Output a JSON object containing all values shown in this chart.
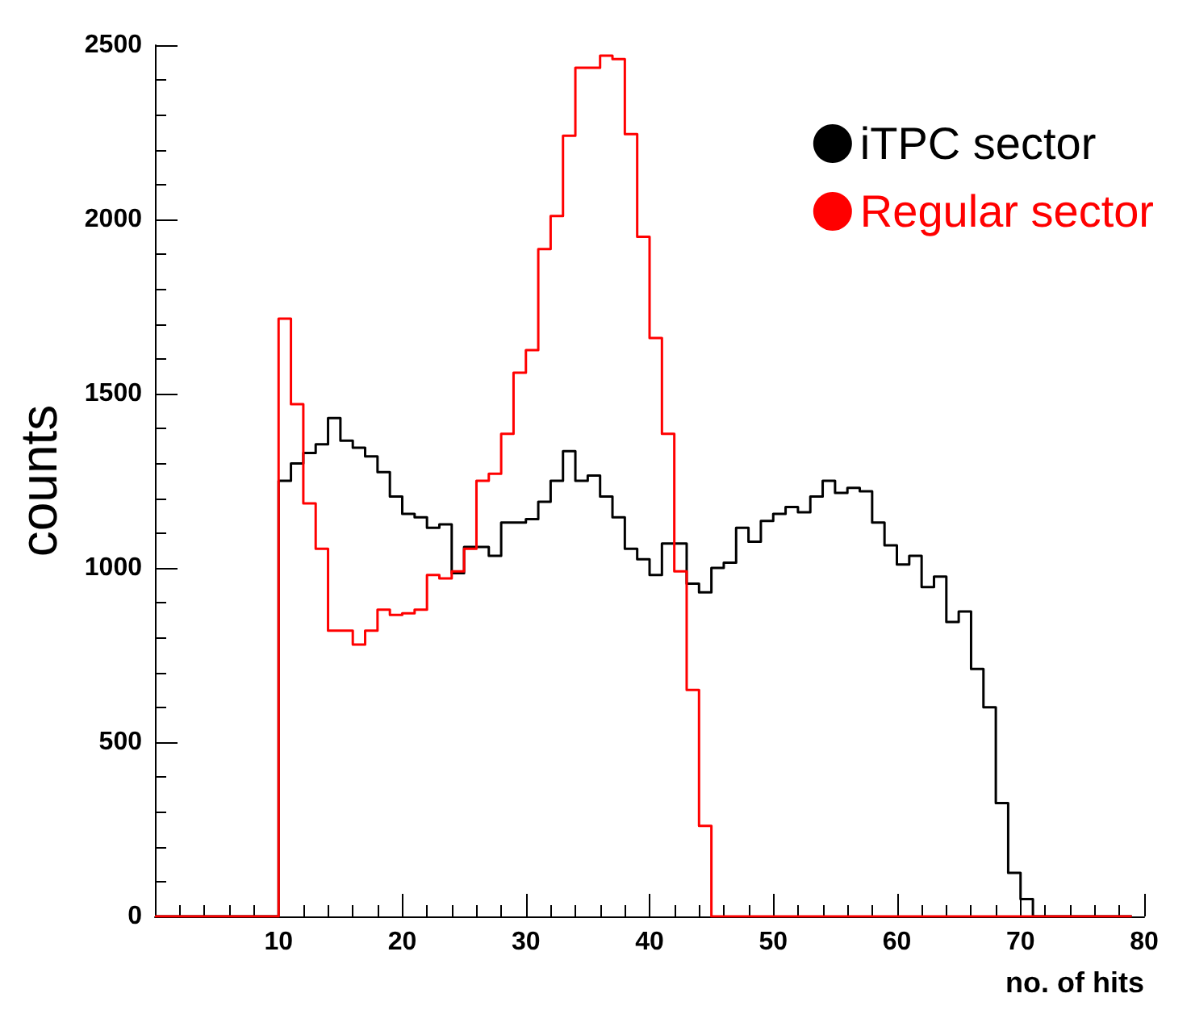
{
  "chart_data": {
    "type": "step",
    "xlabel": "no. of hits",
    "ylabel": "counts",
    "x": [
      0,
      1,
      2,
      3,
      4,
      5,
      6,
      7,
      8,
      9,
      10,
      11,
      12,
      13,
      14,
      15,
      16,
      17,
      18,
      19,
      20,
      21,
      22,
      23,
      24,
      25,
      26,
      27,
      28,
      29,
      30,
      31,
      32,
      33,
      34,
      35,
      36,
      37,
      38,
      39,
      40,
      41,
      42,
      43,
      44,
      45,
      46,
      47,
      48,
      49,
      50,
      51,
      52,
      53,
      54,
      55,
      56,
      57,
      58,
      59,
      60,
      61,
      62,
      63,
      64,
      65,
      66,
      67,
      68,
      69,
      70,
      71,
      72,
      73,
      74,
      75,
      76,
      77,
      78,
      79
    ],
    "series": [
      {
        "name": "iTPC sector",
        "color": "#000000",
        "values": [
          0,
          0,
          0,
          0,
          0,
          0,
          0,
          0,
          0,
          0,
          1250,
          1300,
          1330,
          1355,
          1430,
          1365,
          1345,
          1320,
          1275,
          1205,
          1155,
          1145,
          1115,
          1125,
          985,
          1060,
          1060,
          1035,
          1130,
          1130,
          1140,
          1190,
          1250,
          1335,
          1250,
          1265,
          1205,
          1145,
          1055,
          1025,
          980,
          1070,
          1070,
          955,
          930,
          1000,
          1015,
          1115,
          1075,
          1135,
          1155,
          1175,
          1160,
          1205,
          1250,
          1215,
          1230,
          1220,
          1130,
          1065,
          1010,
          1035,
          945,
          975,
          845,
          875,
          710,
          600,
          325,
          125,
          50,
          0,
          0,
          0,
          0,
          0,
          0,
          0,
          0,
          0
        ]
      },
      {
        "name": "Regular sector",
        "color": "#ff0000",
        "values": [
          0,
          0,
          0,
          0,
          0,
          0,
          0,
          0,
          0,
          0,
          1715,
          1470,
          1185,
          1055,
          820,
          820,
          780,
          820,
          880,
          865,
          870,
          880,
          980,
          970,
          990,
          1055,
          1250,
          1270,
          1385,
          1560,
          1625,
          1915,
          2010,
          2240,
          2435,
          2435,
          2470,
          2460,
          2245,
          1950,
          1660,
          1385,
          990,
          650,
          260,
          0,
          0,
          0,
          0,
          0,
          0,
          0,
          0,
          0,
          0,
          0,
          0,
          0,
          0,
          0,
          0,
          0,
          0,
          0,
          0,
          0,
          0,
          0,
          0,
          0,
          0,
          0,
          0,
          0,
          0,
          0,
          0,
          0,
          0,
          0
        ]
      }
    ],
    "xlim": [
      0,
      80
    ],
    "ylim": [
      0,
      2500
    ],
    "xticks": [
      {
        "value": 0,
        "label": null
      },
      10,
      20,
      30,
      40,
      50,
      60,
      70,
      80
    ],
    "yticks": [
      0,
      500,
      1000,
      1500,
      2000,
      2500
    ],
    "legend": "top right",
    "grid": false
  }
}
